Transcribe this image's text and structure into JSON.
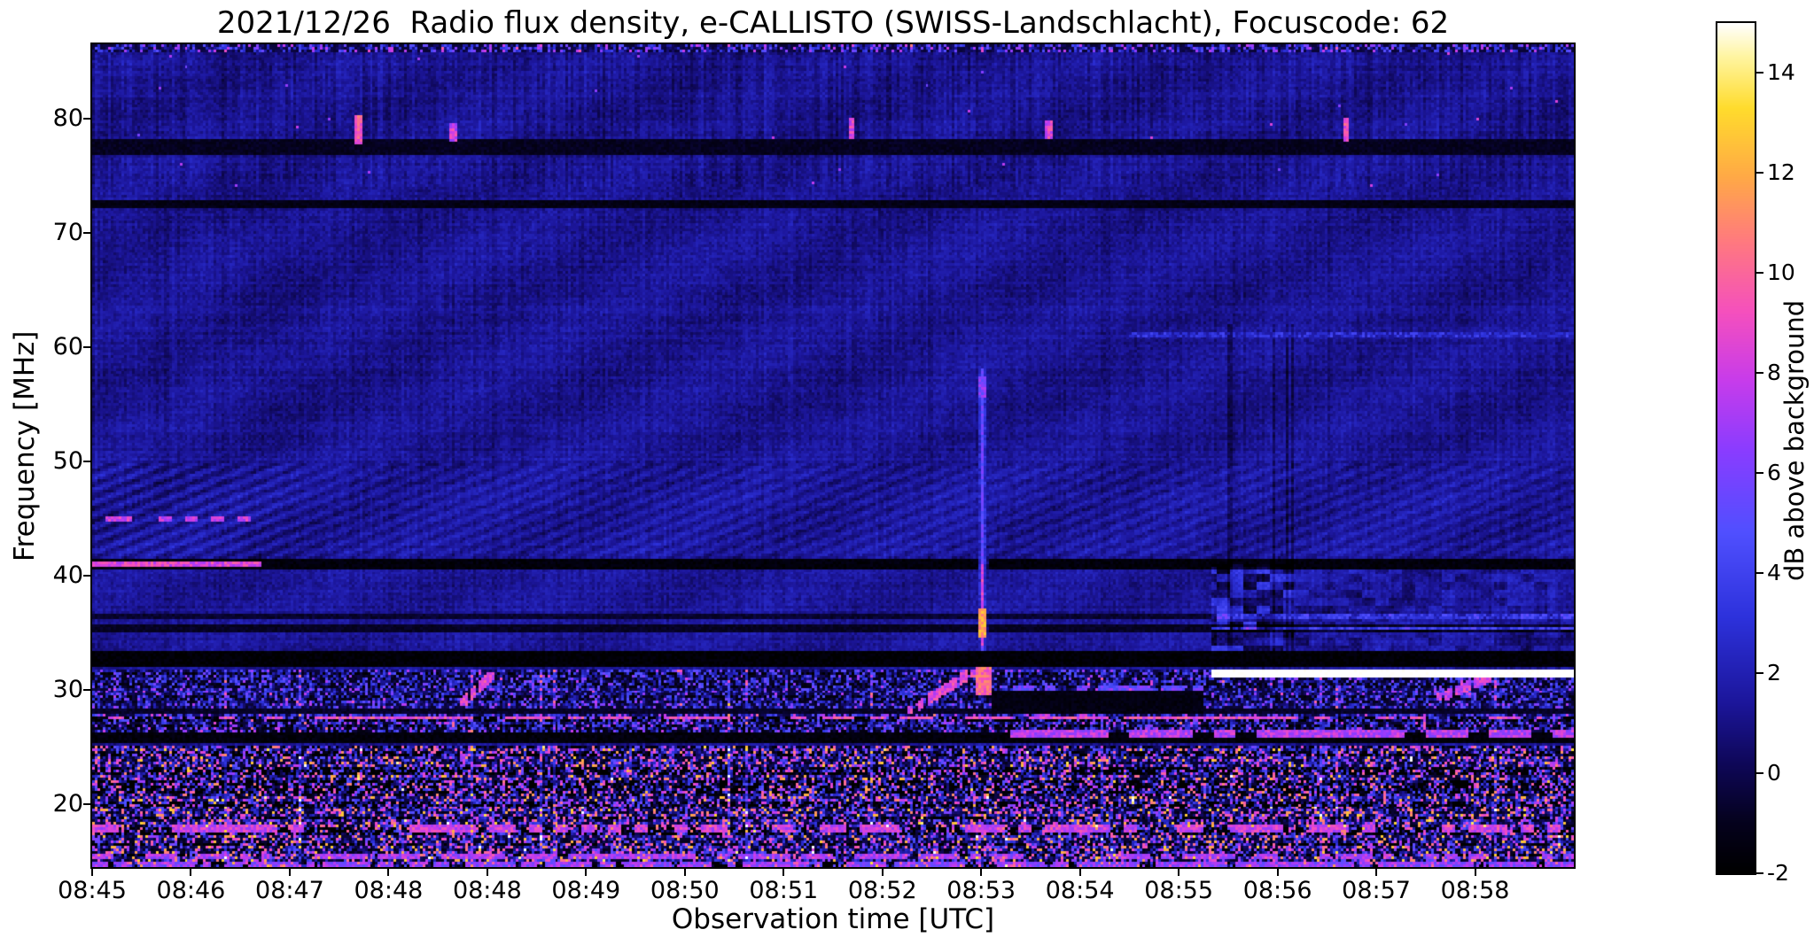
{
  "chart_data": {
    "type": "heatmap",
    "title": "2021/12/26  Radio flux density, e-CALLISTO (SWISS-Landschlacht), Focuscode: 62",
    "xlabel": "Observation time [UTC]",
    "ylabel": "Frequency [MHz]",
    "x_ticks": [
      "08:45",
      "08:46",
      "08:47",
      "08:48",
      "08:48",
      "08:49",
      "08:50",
      "08:51",
      "08:52",
      "08:53",
      "08:54",
      "08:55",
      "08:56",
      "08:57",
      "08:58"
    ],
    "y_ticks": [
      20,
      30,
      40,
      50,
      60,
      70,
      80
    ],
    "x_range_utc": [
      "08:45:00",
      "08:59:00"
    ],
    "y_range_mhz": [
      14.5,
      86.5
    ],
    "background_db": 1.2,
    "grid": false,
    "colorbar": {
      "label": "dB above background",
      "ticks": [
        14,
        12,
        10,
        8,
        6,
        4,
        2,
        0,
        -2
      ],
      "range": [
        -2,
        15
      ],
      "colormap_stops": [
        [
          0.0,
          0,
          0,
          0
        ],
        [
          0.06,
          5,
          2,
          30
        ],
        [
          0.13,
          15,
          8,
          90
        ],
        [
          0.2,
          28,
          22,
          155
        ],
        [
          0.3,
          45,
          50,
          220
        ],
        [
          0.4,
          80,
          80,
          255
        ],
        [
          0.5,
          140,
          60,
          255
        ],
        [
          0.58,
          200,
          60,
          235
        ],
        [
          0.66,
          245,
          80,
          190
        ],
        [
          0.74,
          255,
          120,
          130
        ],
        [
          0.82,
          255,
          170,
          70
        ],
        [
          0.9,
          255,
          220,
          45
        ],
        [
          0.96,
          255,
          245,
          160
        ],
        [
          1.0,
          255,
          255,
          255
        ]
      ]
    },
    "features": [
      {
        "kind": "ripple",
        "desc": "diagonal interference ripple 41-50 MHz, stronger before 08:46:50",
        "f0": 40.5,
        "f1": 49.8,
        "t0": 0,
        "t1": 1,
        "amp": 0.55
      },
      {
        "kind": "col_texture",
        "desc": "vertical striping above 74 MHz",
        "f0": 74,
        "f1": 86.5,
        "t0": 0,
        "t1": 1,
        "amp": 0.9
      },
      {
        "kind": "col_texture",
        "desc": "faint vertical striping 50-74 MHz",
        "f0": 50,
        "f1": 74,
        "t0": 0,
        "t1": 1,
        "amp": 0.35
      },
      {
        "kind": "sparkle",
        "desc": "sporadic single-pixel bursts above 74 MHz",
        "f0": 74,
        "f1": 86.5,
        "t0": 0,
        "t1": 1
      },
      {
        "kind": "speckle",
        "desc": "noisy top edge ~86 MHz",
        "f0": 85.9,
        "f1": 86.5,
        "t0": 0,
        "t1": 1,
        "db_lo": -0.5,
        "db_hi": 8,
        "pow": 3,
        "row_amp": 0
      },
      {
        "kind": "dark_band",
        "desc": "blanked channel ~77.5 MHz",
        "f0": 76.8,
        "f1": 78.1,
        "t0": 0,
        "t1": 1,
        "db": -1.4
      },
      {
        "kind": "dark_band",
        "desc": "blanked channel ~72.5 MHz",
        "f0": 72.2,
        "f1": 72.9,
        "t0": 0,
        "t1": 1,
        "db": -1.7
      },
      {
        "kind": "dark_band",
        "desc": "dark channel ~35.4 MHz",
        "f0": 35.1,
        "f1": 35.7,
        "t0": 0,
        "t1": 1,
        "db": -1.3
      },
      {
        "kind": "dark_band",
        "desc": "dark channel ~36.4 MHz",
        "f0": 36.2,
        "f1": 36.7,
        "t0": 0,
        "t1": 1,
        "db": -1.0
      },
      {
        "kind": "dark_band",
        "desc": "blanked black band 32.1-33.4 MHz",
        "f0": 32.1,
        "f1": 33.4,
        "t0": 0,
        "t1": 1,
        "db": -2.2
      },
      {
        "kind": "dark_band",
        "desc": "dark channel ~41 MHz",
        "f0": 40.5,
        "f1": 41.4,
        "t0": 0,
        "t1": 1,
        "db": -2.0
      },
      {
        "kind": "dark_band",
        "desc": "dark band ~25.7 MHz",
        "f0": 25.3,
        "f1": 26.2,
        "t0": 0,
        "t1": 1,
        "db": -2.0
      },
      {
        "kind": "dark_band",
        "desc": "dark band ~28.1 MHz",
        "f0": 27.8,
        "f1": 28.4,
        "t0": 0,
        "t1": 1,
        "db": -1.2
      },
      {
        "kind": "speckle",
        "desc": "dense RFI speckle 14.5-25 MHz",
        "f0": 14.5,
        "f1": 25.2,
        "t0": 0,
        "t1": 1,
        "db_lo": -2,
        "db_hi": 12,
        "pow": 2.8,
        "row_amp": 3
      },
      {
        "kind": "speckle",
        "desc": "RFI speckle 26-28 MHz",
        "f0": 26.2,
        "f1": 27.8,
        "t0": 0,
        "t1": 1,
        "db_lo": -1.5,
        "db_hi": 8,
        "pow": 2.5,
        "row_amp": 2
      },
      {
        "kind": "speckle",
        "desc": "RFI speckle 28-32 MHz",
        "f0": 28.4,
        "f1": 31.9,
        "t0": 0,
        "t1": 1,
        "db_lo": -1.2,
        "db_hi": 7,
        "pow": 2.6,
        "row_amp": 1.5
      },
      {
        "kind": "dark_band",
        "desc": "quiet dark patch 28-30 MHz after 08:53 burst",
        "f0": 27.9,
        "f1": 29.9,
        "t0": 0.607,
        "t1": 0.75,
        "db": -1.8
      },
      {
        "kind": "bright_line",
        "desc": "strong intermittent RFI ~27.5 MHz",
        "f0": 27.35,
        "f1": 27.75,
        "t0": 0,
        "t1": 1,
        "db": 9,
        "dash": 6,
        "gap": 0.45
      },
      {
        "kind": "bright_line",
        "desc": "intermittent RFI ~17.9 MHz",
        "f0": 17.6,
        "f1": 18.1,
        "t0": 0,
        "t1": 1,
        "db": 8,
        "dash": 5,
        "gap": 0.4
      },
      {
        "kind": "bright_line",
        "desc": "intermittent RFI ~15.5 MHz",
        "f0": 15.2,
        "f1": 15.7,
        "t0": 0,
        "t1": 1,
        "db": 7,
        "dash": 4,
        "gap": 0.35
      },
      {
        "kind": "bright_line",
        "desc": "bright bottom edge ~14.8 MHz",
        "f0": 14.5,
        "f1": 15.0,
        "t0": 0,
        "t1": 1,
        "db": 6.5,
        "dash": 3,
        "gap": 0.25
      },
      {
        "kind": "bright_line",
        "desc": "RFI segments at 45 MHz until ~08:46:50",
        "f0": 44.8,
        "f1": 45.3,
        "t0": 0,
        "t1": 0.115,
        "db": 8,
        "dash": 5,
        "gap": 0.25
      },
      {
        "kind": "bright_line",
        "desc": "RFI segments at 41 MHz until ~08:46:50",
        "f0": 40.7,
        "f1": 41.3,
        "t0": 0,
        "t1": 0.115,
        "db": 8.5,
        "dash": 5,
        "gap": 0.25
      },
      {
        "kind": "bright_line",
        "desc": "carrier ~26.1 MHz after 08:53.7",
        "f0": 25.9,
        "f1": 26.4,
        "t0": 0.62,
        "t1": 1,
        "db": 7.5,
        "dash": 8,
        "gap": 0.3
      },
      {
        "kind": "bright_line",
        "desc": "ragged line ~30.1 MHz 08:53.5-08:55.5",
        "f0": 29.9,
        "f1": 30.4,
        "t0": 0.607,
        "t1": 0.75,
        "db": 5.5,
        "dash": 4,
        "gap": 0.35
      },
      {
        "kind": "bright_line",
        "desc": "faint line 35.4 MHz after 08:55.5",
        "f0": 35.2,
        "f1": 35.6,
        "t0": 0.756,
        "t1": 1,
        "db": 3.6,
        "dash": 1,
        "gap": 0
      },
      {
        "kind": "bright_line",
        "desc": "faint line 36.4 MHz after 08:55.5",
        "f0": 36.2,
        "f1": 36.6,
        "t0": 0.756,
        "t1": 1,
        "db": 3.2,
        "dash": 1,
        "gap": 0
      },
      {
        "kind": "bright_line",
        "desc": "faint line ~61 MHz in right part",
        "f0": 60.9,
        "f1": 61.3,
        "t0": 0.7,
        "t1": 1,
        "db": 2.8,
        "dash": 1,
        "gap": 0
      },
      {
        "kind": "blocks",
        "desc": "blocky mixed texture 33-41 MHz just after 08:55.5",
        "f0": 33.4,
        "f1": 41,
        "t0": 0.756,
        "t1": 0.81,
        "amp": 3.2
      },
      {
        "kind": "blocks",
        "desc": "weak blocky texture 33-40 MHz to end",
        "f0": 33.4,
        "f1": 40.5,
        "t0": 0.756,
        "t1": 1,
        "amp": 1.6
      },
      {
        "kind": "dark_cols",
        "desc": "dark vertical dropouts after 08:55.5",
        "f0": 33.4,
        "f1": 62,
        "t0": 0.756,
        "t1": 0.81,
        "amp": 1.3
      },
      {
        "kind": "white_line",
        "desc": "saturated carrier ~31.5 MHz from ~08:55:30 to end",
        "f0": 31.2,
        "f1": 31.75,
        "t0": 0.756,
        "t1": 1,
        "db": 15.2
      },
      {
        "kind": "vline",
        "desc": "broadband vertical burst at ~08:53:25 spanning 33-58 MHz",
        "f0": 33.5,
        "f1": 58,
        "t0": 0.5975,
        "t1": 0.6045,
        "db": 5.5
      },
      {
        "kind": "vline",
        "desc": "bright core of the burst 34-41 MHz",
        "f0": 34,
        "f1": 41,
        "t0": 0.599,
        "t1": 0.603,
        "db": 9
      },
      {
        "kind": "burst_spot",
        "desc": "white burst core 34.5-37 MHz",
        "f0": 34.5,
        "f1": 37,
        "t0": 0.599,
        "t1": 0.604,
        "db": 12
      },
      {
        "kind": "burst_spot",
        "desc": "burst blob 55.5-57.5 MHz",
        "f0": 55.5,
        "f1": 57.5,
        "t0": 0.599,
        "t1": 0.604,
        "db": 6
      },
      {
        "kind": "burst_spot",
        "desc": "bright base of burst 29.5-32 MHz",
        "f0": 29.5,
        "f1": 32.0,
        "t0": 0.597,
        "t1": 0.607,
        "db": 10
      },
      {
        "kind": "burst_spot",
        "desc": "point burst ~79 MHz near 08:47.5",
        "f0": 77.8,
        "f1": 80.3,
        "t0": 0.176,
        "t1": 0.183,
        "db": 9.5
      },
      {
        "kind": "burst_spot",
        "desc": "point burst ~79 MHz near 08:48.4",
        "f0": 78.0,
        "f1": 79.6,
        "t0": 0.241,
        "t1": 0.246,
        "db": 8
      },
      {
        "kind": "burst_spot",
        "desc": "point burst ~79 MHz near 08:52.1",
        "f0": 78.2,
        "f1": 80.0,
        "t0": 0.51,
        "t1": 0.515,
        "db": 8.5
      },
      {
        "kind": "burst_spot",
        "desc": "point burst ~79 MHz near 08:54.0",
        "f0": 78.2,
        "f1": 79.8,
        "t0": 0.643,
        "t1": 0.648,
        "db": 8.5
      },
      {
        "kind": "burst_spot",
        "desc": "point burst ~79 MHz near 08:56.8",
        "f0": 77.9,
        "f1": 80.1,
        "t0": 0.844,
        "t1": 0.849,
        "db": 9
      },
      {
        "kind": "drift",
        "desc": "rising streak to 31.6 MHz near 08:48.5",
        "f0": 28.6,
        "f1": 31.6,
        "t0": 0.248,
        "t1": 0.272,
        "db": 8.5
      },
      {
        "kind": "drift",
        "desc": "rising streak leading into the 08:53 burst",
        "f0": 27.8,
        "f1": 31.9,
        "t0": 0.548,
        "t1": 0.598,
        "db": 8.5
      },
      {
        "kind": "drift",
        "desc": "rising streak toward white carrier near 08:57.9",
        "f0": 29.0,
        "f1": 31.3,
        "t0": 0.905,
        "t1": 0.945,
        "db": 8
      }
    ]
  }
}
